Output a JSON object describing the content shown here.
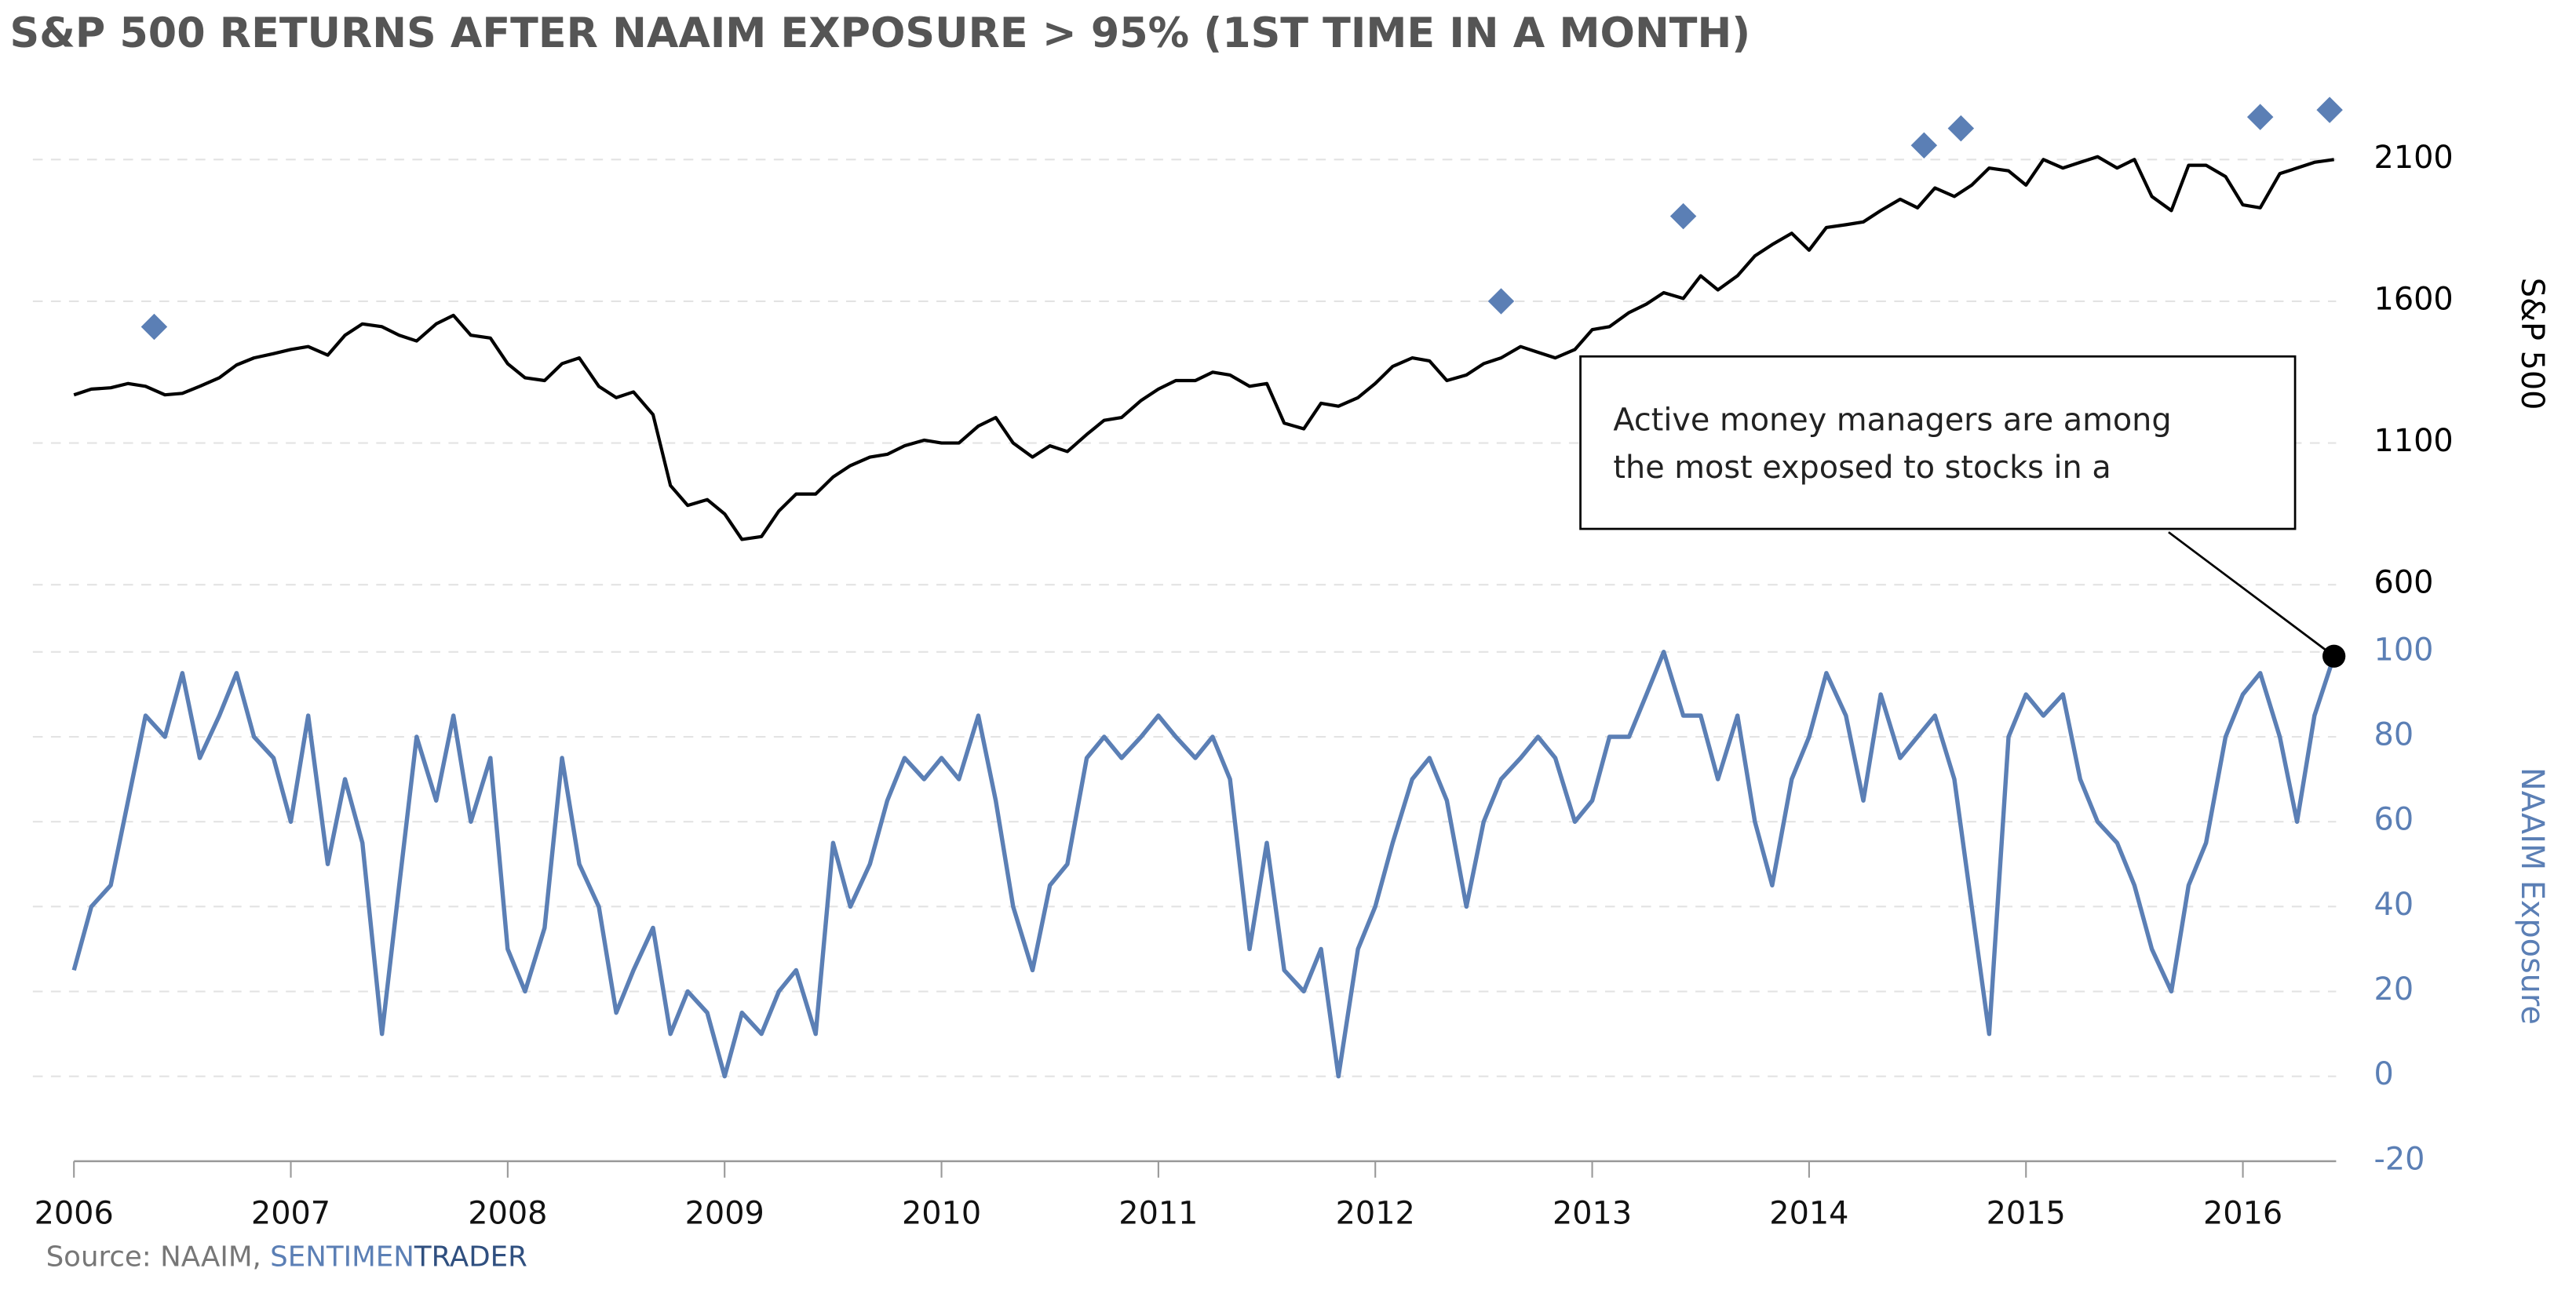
{
  "title": "S&P 500 RETURNS AFTER NAAIM EXPOSURE > 95% (1ST TIME IN A MONTH)",
  "source": "Source: NAAIM, ",
  "source_brand": [
    "SENTIMEN",
    "TRADER"
  ],
  "chart_data": [
    {
      "type": "line",
      "ylabel": "S&P 500",
      "color": "#000000",
      "x": [
        2006.0,
        2006.08,
        2006.17,
        2006.25,
        2006.33,
        2006.42,
        2006.5,
        2006.58,
        2006.67,
        2006.75,
        2006.83,
        2006.92,
        2007.0,
        2007.08,
        2007.17,
        2007.25,
        2007.33,
        2007.42,
        2007.5,
        2007.58,
        2007.67,
        2007.75,
        2007.83,
        2007.92,
        2008.0,
        2008.08,
        2008.17,
        2008.25,
        2008.33,
        2008.42,
        2008.5,
        2008.58,
        2008.67,
        2008.75,
        2008.83,
        2008.92,
        2009.0,
        2009.08,
        2009.17,
        2009.25,
        2009.33,
        2009.42,
        2009.5,
        2009.58,
        2009.67,
        2009.75,
        2009.83,
        2009.92,
        2010.0,
        2010.08,
        2010.17,
        2010.25,
        2010.33,
        2010.42,
        2010.5,
        2010.58,
        2010.67,
        2010.75,
        2010.83,
        2010.92,
        2011.0,
        2011.08,
        2011.17,
        2011.25,
        2011.33,
        2011.42,
        2011.5,
        2011.58,
        2011.67,
        2011.75,
        2011.83,
        2011.92,
        2012.0,
        2012.08,
        2012.17,
        2012.25,
        2012.33,
        2012.42,
        2012.5,
        2012.58,
        2012.67,
        2012.75,
        2012.83,
        2012.92,
        2013.0,
        2013.08,
        2013.17,
        2013.25,
        2013.33,
        2013.42,
        2013.5,
        2013.58,
        2013.67,
        2013.75,
        2013.83,
        2013.92,
        2014.0,
        2014.08,
        2014.17,
        2014.25,
        2014.33,
        2014.42,
        2014.5,
        2014.58,
        2014.67,
        2014.75,
        2014.83,
        2014.92,
        2015.0,
        2015.08,
        2015.17,
        2015.25,
        2015.33,
        2015.42,
        2015.5,
        2015.58,
        2015.67,
        2015.75,
        2015.83,
        2015.92,
        2016.0,
        2016.08,
        2016.17,
        2016.25,
        2016.33,
        2016.42
      ],
      "values": [
        1270,
        1290,
        1295,
        1310,
        1300,
        1270,
        1275,
        1300,
        1330,
        1375,
        1400,
        1415,
        1430,
        1440,
        1410,
        1480,
        1520,
        1510,
        1480,
        1460,
        1520,
        1550,
        1480,
        1470,
        1380,
        1330,
        1320,
        1380,
        1400,
        1300,
        1260,
        1280,
        1200,
        950,
        880,
        900,
        850,
        760,
        770,
        860,
        920,
        920,
        980,
        1020,
        1050,
        1060,
        1090,
        1110,
        1100,
        1100,
        1160,
        1190,
        1100,
        1050,
        1090,
        1070,
        1130,
        1180,
        1190,
        1250,
        1290,
        1320,
        1320,
        1350,
        1340,
        1300,
        1310,
        1170,
        1150,
        1240,
        1230,
        1260,
        1310,
        1370,
        1400,
        1390,
        1320,
        1340,
        1380,
        1400,
        1440,
        1420,
        1400,
        1430,
        1500,
        1510,
        1560,
        1590,
        1630,
        1610,
        1690,
        1640,
        1690,
        1760,
        1800,
        1840,
        1780,
        1860,
        1870,
        1880,
        1920,
        1960,
        1930,
        2000,
        1970,
        2010,
        2070,
        2060,
        2010,
        2100,
        2070,
        2090,
        2110,
        2070,
        2100,
        1970,
        1920,
        2080,
        2080,
        2040,
        1940,
        1930,
        2050,
        2070,
        2090,
        2100
      ],
      "markers": {
        "color": "#5b7fb5",
        "x": [
          2006.37,
          2012.58,
          2013.42,
          2014.53,
          2014.7,
          2016.08,
          2016.4
        ],
        "values": [
          1510,
          1600,
          1900,
          2150,
          2210,
          2250,
          2275
        ]
      },
      "ylim": [
        600,
        2300
      ],
      "yticks": [
        600,
        1100,
        1600,
        2100
      ],
      "grid": true
    },
    {
      "type": "line",
      "ylabel": "NAAIM Exposure",
      "color": "#5b7fb5",
      "values": [
        25,
        40,
        45,
        65,
        85,
        80,
        95,
        75,
        85,
        95,
        80,
        75,
        60,
        85,
        50,
        70,
        55,
        10,
        45,
        80,
        65,
        85,
        60,
        75,
        30,
        20,
        35,
        75,
        50,
        40,
        15,
        25,
        35,
        10,
        20,
        15,
        0,
        15,
        10,
        20,
        25,
        10,
        55,
        40,
        50,
        65,
        75,
        70,
        75,
        70,
        85,
        65,
        40,
        25,
        45,
        50,
        75,
        80,
        75,
        80,
        85,
        80,
        75,
        80,
        70,
        30,
        55,
        25,
        20,
        30,
        0,
        30,
        40,
        55,
        70,
        75,
        65,
        40,
        60,
        70,
        75,
        80,
        75,
        60,
        65,
        80,
        80,
        90,
        100,
        85,
        85,
        70,
        85,
        60,
        45,
        70,
        80,
        95,
        85,
        65,
        90,
        75,
        80,
        85,
        70,
        40,
        10,
        80,
        90,
        85,
        90,
        70,
        60,
        55,
        45,
        30,
        20,
        45,
        55,
        80,
        90,
        95,
        80,
        60,
        85,
        99
      ],
      "ylim": [
        -20,
        105
      ],
      "yticks": [
        -20,
        0,
        20,
        40,
        60,
        80,
        100
      ],
      "grid": true,
      "xlim": [
        2006,
        2016.43
      ],
      "xticks": [
        2006,
        2007,
        2008,
        2009,
        2010,
        2011,
        2012,
        2013,
        2014,
        2015,
        2016
      ],
      "annotation": {
        "lines": [
          "Active money managers are among",
          "the most exposed to stocks in a"
        ],
        "x": 2016.42,
        "value": 99
      }
    }
  ]
}
